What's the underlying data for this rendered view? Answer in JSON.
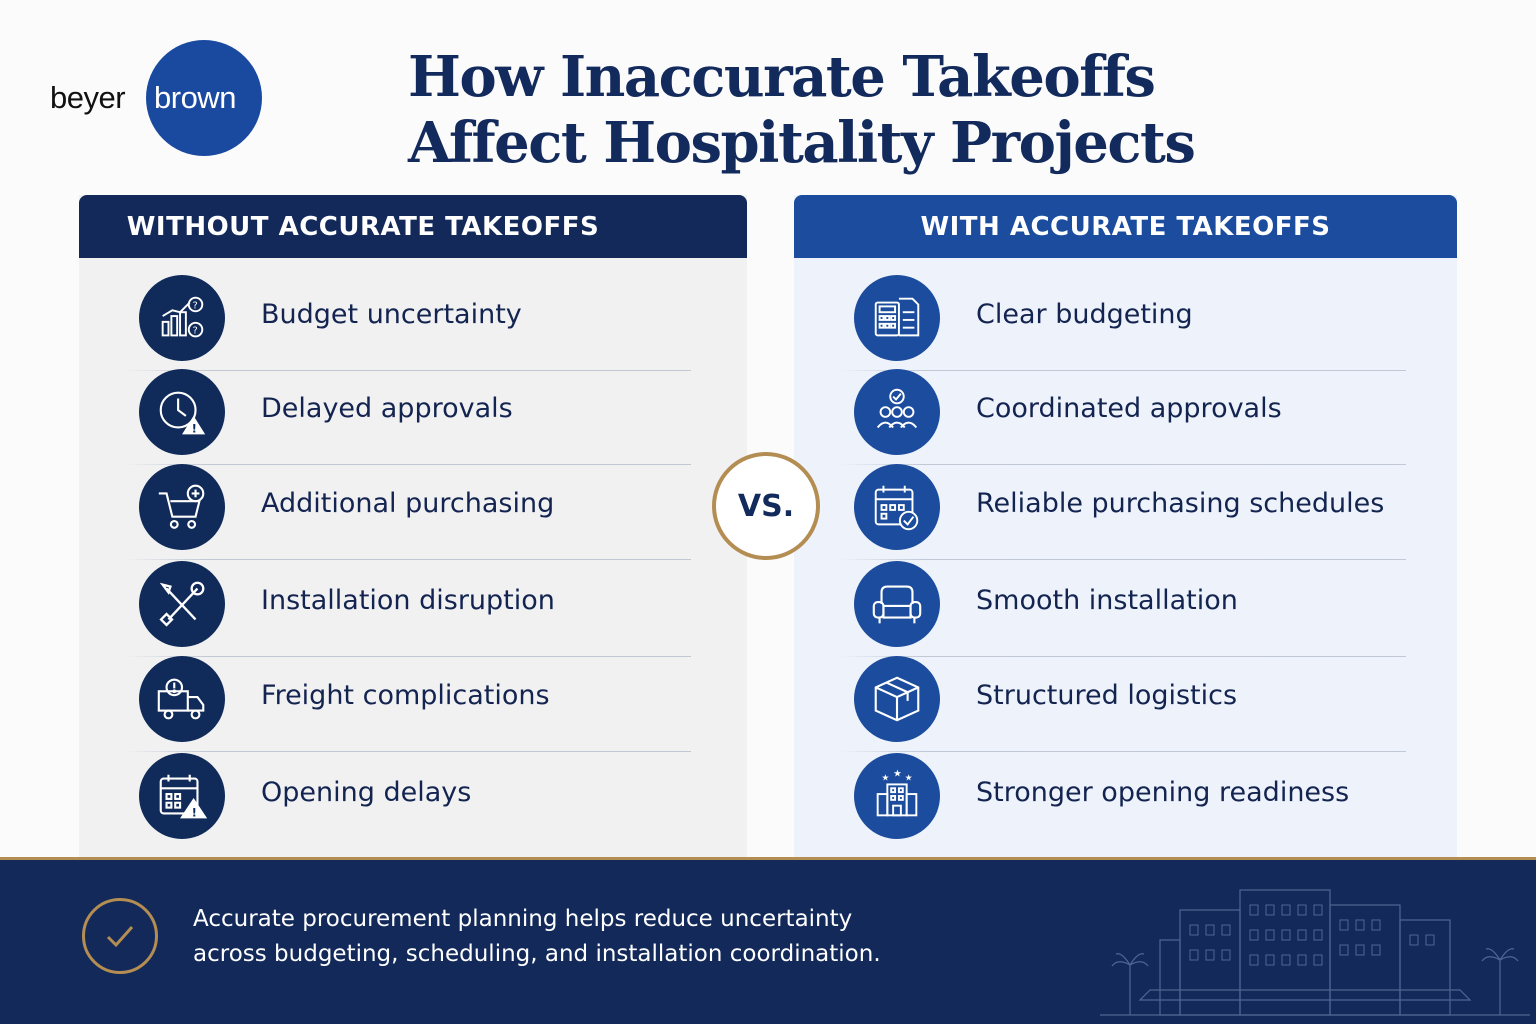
{
  "logo": {
    "part1": "beyer",
    "part2": "brown",
    "brand_color": "#1a4aa0"
  },
  "title": {
    "line1": "How Inaccurate Takeoffs",
    "line2": "Affect Hospitality Projects"
  },
  "left_panel": {
    "header": "WITHOUT ACCURATE TAKEOFFS",
    "items": [
      {
        "label": "Budget uncertainty",
        "icon": "chart-question-icon"
      },
      {
        "label": "Delayed approvals",
        "icon": "clock-warning-icon"
      },
      {
        "label": "Additional purchasing",
        "icon": "cart-plus-icon"
      },
      {
        "label": "Installation disruption",
        "icon": "wrench-screwdriver-icon"
      },
      {
        "label": "Freight complications",
        "icon": "truck-alert-icon"
      },
      {
        "label": "Opening delays",
        "icon": "calendar-warning-icon"
      }
    ]
  },
  "vs": "VS.",
  "right_panel": {
    "header": "WITH ACCURATE TAKEOFFS",
    "items": [
      {
        "label": "Clear budgeting",
        "icon": "calculator-document-icon"
      },
      {
        "label": "Coordinated approvals",
        "icon": "team-check-icon"
      },
      {
        "label": "Reliable purchasing schedules",
        "icon": "calendar-check-icon"
      },
      {
        "label": "Smooth installation",
        "icon": "armchair-icon"
      },
      {
        "label": "Structured logistics",
        "icon": "box-icon"
      },
      {
        "label": "Stronger opening readiness",
        "icon": "hotel-stars-icon"
      }
    ]
  },
  "footer": {
    "line1": "Accurate procurement planning helps reduce uncertainty",
    "line2": "across budgeting, scheduling, and installation coordination.",
    "icon": "check-circle-icon"
  },
  "colors": {
    "navy": "#13295a",
    "blue": "#1b4c9d",
    "gold": "#b48d52"
  }
}
